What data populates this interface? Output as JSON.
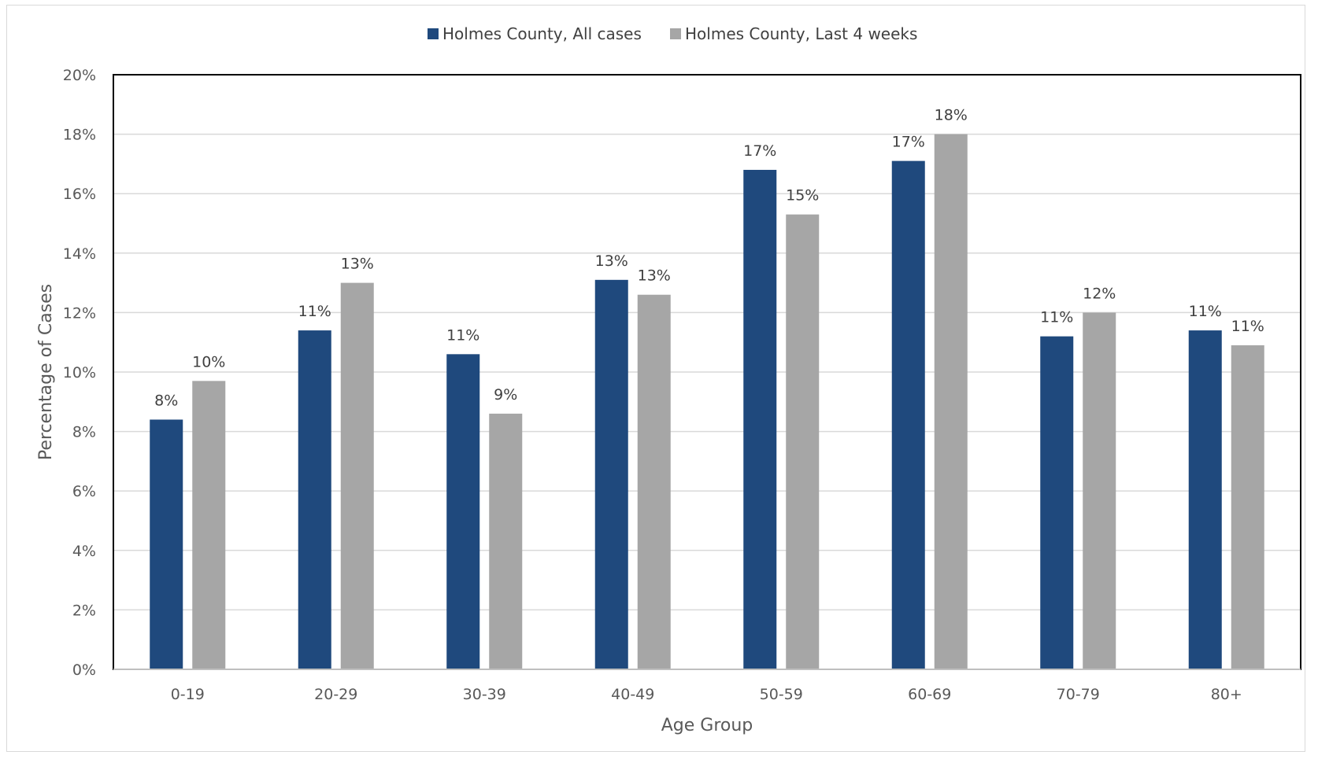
{
  "chart_data": {
    "type": "bar",
    "title": "",
    "xlabel": "Age Group",
    "ylabel": "Percentage of Cases",
    "ylim": [
      0,
      20
    ],
    "yticks": [
      "0%",
      "2%",
      "4%",
      "6%",
      "8%",
      "10%",
      "12%",
      "14%",
      "16%",
      "18%",
      "20%"
    ],
    "grid": true,
    "legend_position": "top-center",
    "categories": [
      "0-19",
      "20-29",
      "30-39",
      "40-49",
      "50-59",
      "60-69",
      "70-79",
      "80+"
    ],
    "series": [
      {
        "name": "Holmes County, All cases",
        "color": "#1f497d",
        "values": [
          8.4,
          11.4,
          10.6,
          13.1,
          16.8,
          17.1,
          11.2,
          11.4
        ],
        "labels": [
          "8%",
          "11%",
          "11%",
          "13%",
          "17%",
          "17%",
          "11%",
          "11%"
        ]
      },
      {
        "name": "Holmes County, Last 4 weeks",
        "color": "#a6a6a6",
        "values": [
          9.7,
          13.0,
          8.6,
          12.6,
          15.3,
          18.0,
          12.0,
          10.9
        ],
        "labels": [
          "10%",
          "13%",
          "9%",
          "13%",
          "15%",
          "18%",
          "12%",
          "11%"
        ]
      }
    ]
  }
}
